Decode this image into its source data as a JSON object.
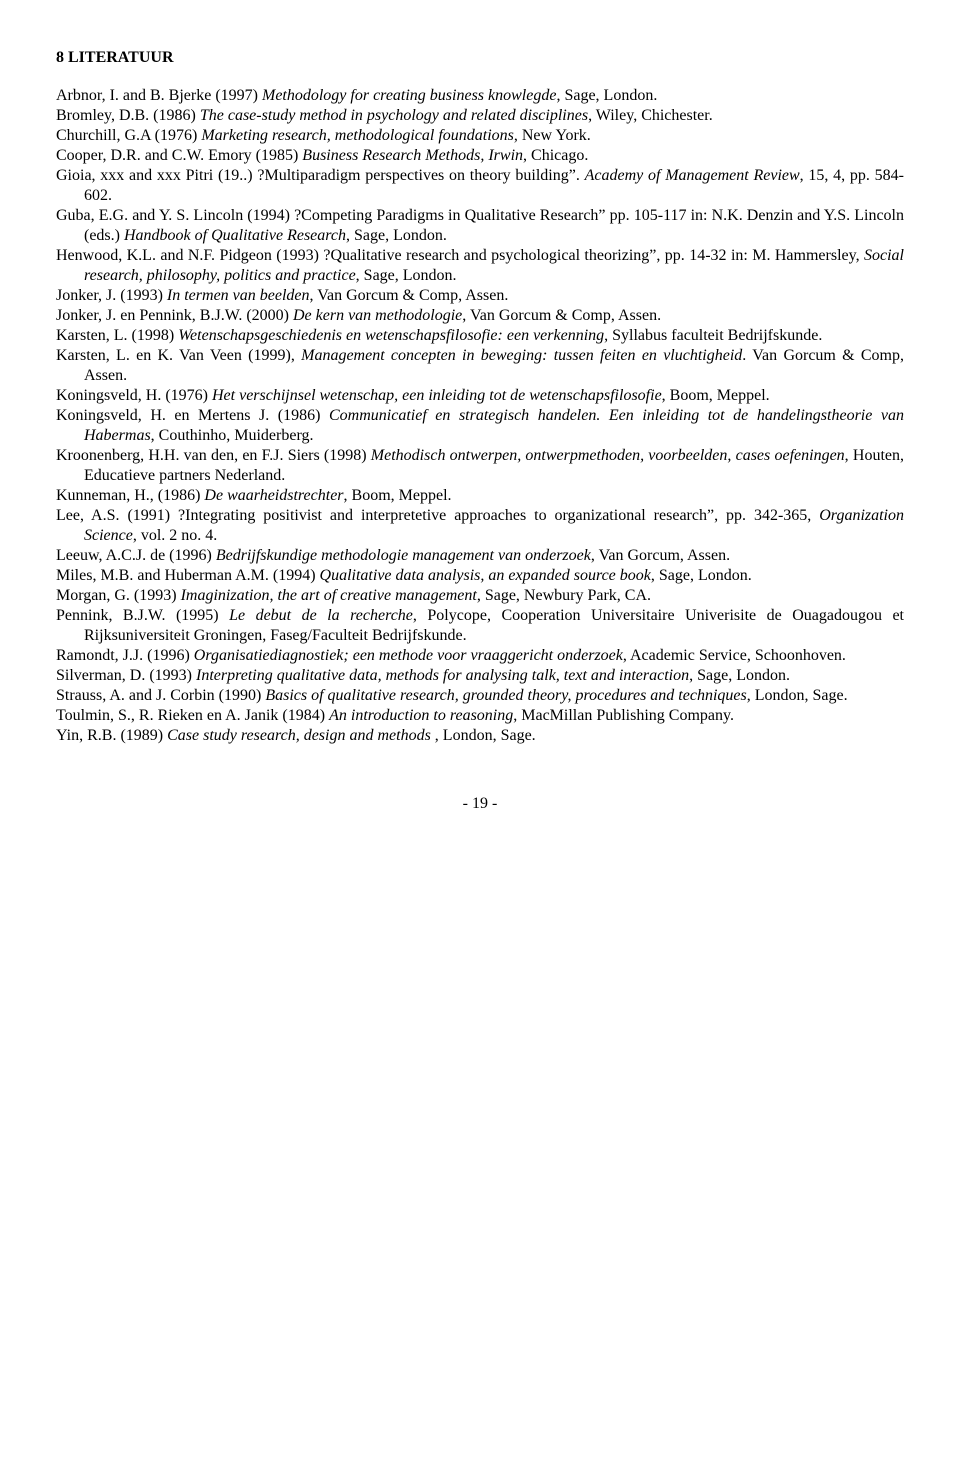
{
  "heading": "8   LITERATUUR",
  "refs": [
    {
      "html": "Arbnor, I. and B. Bjerke (1997) <span class='italic'>Methodology for creating business knowlegde</span>, Sage, London."
    },
    {
      "html": "Bromley, D.B. (1986) <span class='italic'>The case-study method in psychology and related disciplines</span>, Wiley, Chichester."
    },
    {
      "html": "Churchill, G.A (1976) <span class='italic'>Marketing research, methodological foundations</span>, New York."
    },
    {
      "html": "Cooper, D.R. and C.W. Emory (1985) <span class='italic'>Business Research Methods, Irwin</span>, Chicago."
    },
    {
      "html": "Gioia, xxx and xxx Pitri (19..) ?Multiparadigm perspectives on theory building&rdquo;. <span class='italic'>Academy of Management Review</span>, 15, 4, pp. 584-602."
    },
    {
      "html": "Guba, E.G. and Y. S. Lincoln (1994) ?Competing Paradigms in Qualitative Research&rdquo; pp. 105-117 in: N.K. Denzin and Y.S. Lincoln (eds.) <span class='italic'>Handbook of Qualitative Research</span>, Sage, London."
    },
    {
      "html": "Henwood, K.L. and N.F. Pidgeon (1993) ?Qualitative research and psychological theorizing&rdquo;, pp. 14-32 in: M. Hammersley, <span class='italic'>Social research, philosophy, politics and practice</span>, Sage, London."
    },
    {
      "html": "Jonker, J. (1993) <span class='italic'>In termen van beelden</span>, Van Gorcum &amp; Comp, Assen."
    },
    {
      "html": "Jonker, J. en Pennink, B.J.W. (2000) <span class='italic'>De kern van methodologie</span>, Van Gorcum &amp; Comp, Assen."
    },
    {
      "html": "Karsten, L. (1998) <span class='italic'>Wetenschapsgeschiedenis en wetenschapsfilosofie: een verkenning</span>, Syllabus faculteit Bedrijfskunde."
    },
    {
      "html": "Karsten, L. en K. Van Veen (1999), <span class='italic'>Management concepten in beweging: tussen feiten en vluchtigheid</span>. Van Gorcum &amp; Comp, Assen."
    },
    {
      "html": "Koningsveld, H. (1976) <span class='italic'>Het verschijnsel wetenschap, een inleiding tot de wetenschapsfilosofie</span>, Boom, Meppel."
    },
    {
      "html": "Koningsveld, H. en Mertens J. (1986) <span class='italic'>Communicatief en strategisch handelen. Een inleiding tot de handelingstheorie van Habermas</span>, Couthinho, Muiderberg."
    },
    {
      "html": "Kroonenberg, H.H. van den, en F.J. Siers (1998) <span class='italic'>Methodisch ontwerpen, ontwerpmethoden, voorbeelden, cases oefeningen</span>, Houten, Educatieve partners Nederland."
    },
    {
      "html": "Kunneman, H., (1986) <span class='italic'>De waarheidstrechter</span>, Boom, Meppel."
    },
    {
      "html": "Lee, A.S. (1991) ?Integrating positivist and interpretetive approaches to organizational research&rdquo;, pp. 342-365, <span class='italic'>Organization Science</span>, vol. 2 no. 4."
    },
    {
      "html": "Leeuw, A.C.J. de (1996) <span class='italic'>Bedrijfskundige methodologie management van onderzoek</span>, Van Gorcum, Assen."
    },
    {
      "html": "Miles, M.B. and Huberman A.M. (1994) <span class='italic'>Qualitative data analysis, an expanded source book</span>, Sage, London."
    },
    {
      "html": "Morgan, G. (1993) <span class='italic'>Imaginization, the art of creative management</span>, Sage, Newbury Park, CA."
    },
    {
      "html": "Pennink, B.J.W. (1995) <span class='italic'>Le debut de la recherche</span>, Polycope, Cooperation Universitaire Univerisite de Ouagadougou et Rijksuniversiteit Groningen, Faseg/Faculteit Bedrijfskunde."
    },
    {
      "html": "Ramondt, J.J. (1996) <span class='italic'>Organisatiediagnostiek; een methode voor vraaggericht onderzoek</span>, Academic Service, Schoonhoven."
    },
    {
      "html": "Silverman, D. (1993) <span class='italic'>Interpreting qualitative data, methods for analysing talk, text and interaction</span>, Sage, London."
    },
    {
      "html": "Strauss, A. and J. Corbin (1990) <span class='italic'>Basics of qualitative research, grounded theory, procedures and techniques</span>, London, Sage."
    },
    {
      "html": "Toulmin, S., R. Rieken en A. Janik (1984) <span class='italic'>An introduction to reasoning</span>, MacMillan Publishing Company."
    },
    {
      "html": "Yin, R.B. (1989) <span class='italic'>Case study research, design and methods</span> , London, Sage."
    }
  ],
  "page_number": "- 19 -"
}
